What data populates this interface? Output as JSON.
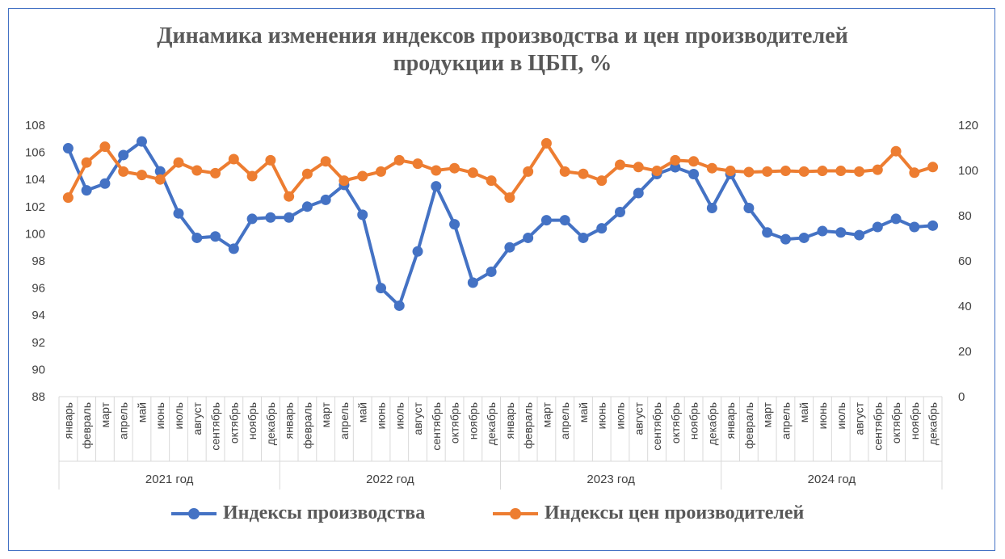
{
  "chart_data": {
    "type": "line",
    "title_line1": "Динамика изменения индексов производства и цен производителей",
    "title_line2": "продукции в ЦБП, %",
    "y_left": {
      "min": 88,
      "max": 108,
      "ticks": [
        "108",
        "106",
        "104",
        "102",
        "100",
        "98",
        "96",
        "94",
        "92",
        "90",
        "88"
      ]
    },
    "y_right": {
      "min": 0,
      "max": 120,
      "ticks": [
        "120",
        "100",
        "80",
        "60",
        "40",
        "20",
        "0"
      ]
    },
    "years": [
      "2021 год",
      "2022 год",
      "2023 год",
      "2024 год"
    ],
    "months": [
      "январь",
      "февраль",
      "март",
      "апрель",
      "май",
      "июнь",
      "июль",
      "август",
      "сентябрь",
      "октябрь",
      "ноябрь",
      "декабрь"
    ],
    "series": [
      {
        "name": "Индексы производства",
        "axis": "left",
        "color": "#4472c4",
        "values": [
          106.3,
          103.2,
          103.7,
          105.8,
          106.8,
          104.6,
          101.5,
          99.7,
          99.8,
          98.9,
          101.1,
          101.2,
          101.2,
          102.0,
          102.5,
          103.6,
          101.4,
          96.0,
          94.7,
          98.7,
          103.5,
          100.7,
          96.4,
          97.2,
          99.0,
          99.7,
          101.0,
          101.0,
          99.7,
          100.4,
          101.6,
          103.0,
          104.4,
          104.9,
          104.4,
          101.9,
          104.4,
          101.9,
          100.1,
          99.6,
          99.7,
          100.2,
          100.1,
          99.9,
          100.5,
          101.1,
          100.5,
          100.6
        ]
      },
      {
        "name": "Индексы цен производителей",
        "axis": "right",
        "color": "#ed7d31",
        "values": [
          88,
          103.5,
          110.5,
          99.5,
          98,
          96,
          103.5,
          100,
          98.8,
          105,
          97.5,
          104.5,
          88.5,
          98.5,
          104,
          95.5,
          97.5,
          99.5,
          104.5,
          103,
          100,
          101,
          99,
          95.5,
          88,
          99.5,
          112,
          99.5,
          98.5,
          95.5,
          102.5,
          101.5,
          99.8,
          104.5,
          104,
          101,
          99.8,
          99.3,
          99.5,
          99.8,
          99.5,
          99.8,
          99.8,
          99.5,
          100.3,
          108.5,
          99,
          101.5
        ]
      }
    ]
  }
}
